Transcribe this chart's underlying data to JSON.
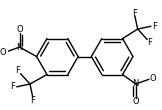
{
  "bg_color": "#ffffff",
  "line_color": "#000000",
  "lw": 1.0,
  "figsize": [
    1.62,
    1.1
  ],
  "dpi": 100,
  "xlim": [
    0,
    162
  ],
  "ylim": [
    0,
    110
  ],
  "r1cx": 52,
  "r1cy": 57,
  "r2cx": 110,
  "r2cy": 57,
  "R": 22,
  "fsize": 6.0,
  "nsize": 6.0
}
